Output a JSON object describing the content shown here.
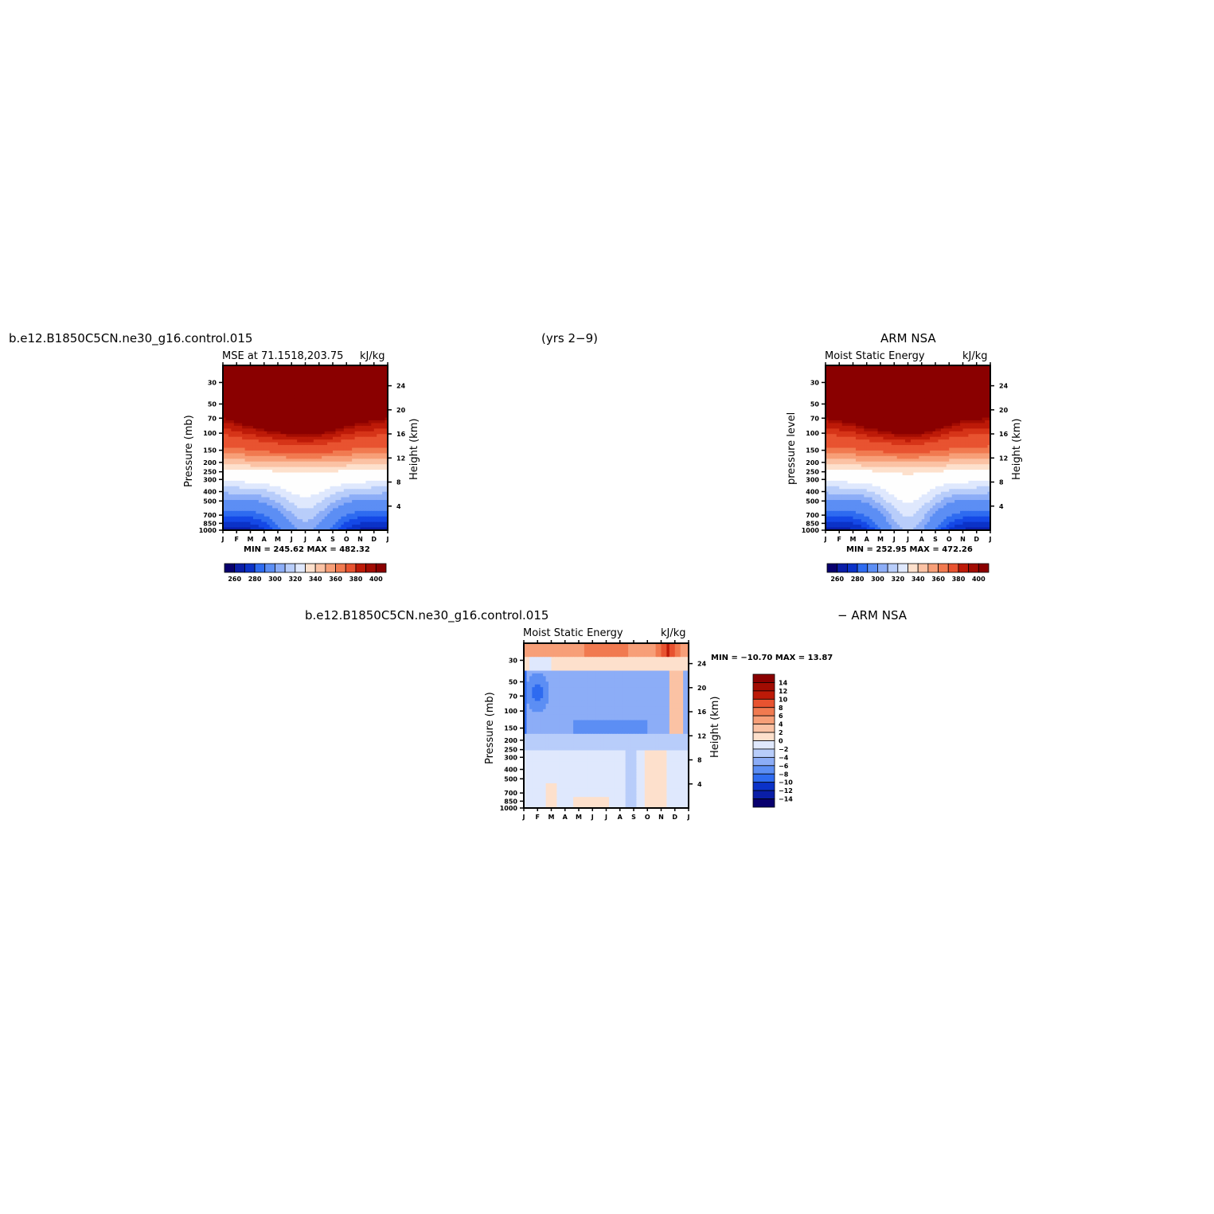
{
  "top_left_case": "b.e12.B1850C5CN.ne30_g16.control.015",
  "period": "(yrs 2−9)",
  "top_right_source": "ARM  NSA",
  "bottom_case": "b.e12.B1850C5CN.ne30_g16.control.015",
  "bottom_source": "− ARM  NSA",
  "colors": {
    "blues": [
      "#08006e",
      "#0a1ea8",
      "#0b32c8",
      "#1448e6",
      "#2e6bf0",
      "#5c8ef4",
      "#8cadf7",
      "#b8cdfa",
      "#dfe8fd"
    ],
    "white": "#fefefe",
    "reds": [
      "#fde0cc",
      "#fbc2a4",
      "#f79f78",
      "#f17a50",
      "#e85330",
      "#d63418",
      "#bd1a08",
      "#a20c02",
      "#8a0000"
    ]
  },
  "chart_data": [
    {
      "type": "heatmap",
      "title": "MSE  at  71.1518,203.75",
      "units": "kJ/kg",
      "ylabel": "Pressure  (mb)",
      "ylabel_right": "Height  (km)",
      "months": [
        "J",
        "F",
        "M",
        "A",
        "M",
        "J",
        "J",
        "A",
        "S",
        "O",
        "N",
        "D",
        "J"
      ],
      "pressure_ticks": [
        "30",
        "50",
        "70",
        "100",
        "150",
        "200",
        "250",
        "300",
        "400",
        "500",
        "700",
        "850",
        "1000"
      ],
      "height_ticks": [
        "24",
        "20",
        "16",
        "12",
        "8",
        "4"
      ],
      "stats": "MIN =  245.62  MAX =  482.32",
      "legend_labels": [
        "260",
        "280",
        "300",
        "320",
        "340",
        "360",
        "380",
        "400"
      ],
      "levels": [
        255,
        260,
        265,
        270,
        275,
        280,
        285,
        290,
        295,
        300,
        310,
        320,
        330,
        340,
        350,
        360,
        370,
        380,
        390,
        400
      ],
      "tropopause_p": [
        70,
        78,
        85,
        92,
        98,
        102,
        105,
        102,
        95,
        85,
        78,
        75,
        70
      ],
      "trough": {
        "center_month": 6,
        "surface_depth": 0.65
      }
    },
    {
      "type": "heatmap",
      "title": "Moist  Static  Energy",
      "units": "kJ/kg",
      "ylabel": "pressure  level",
      "ylabel_right": "Height  (km)",
      "months": [
        "J",
        "F",
        "M",
        "A",
        "M",
        "J",
        "J",
        "A",
        "S",
        "O",
        "N",
        "D",
        "J"
      ],
      "pressure_ticks": [
        "30",
        "50",
        "70",
        "100",
        "150",
        "200",
        "250",
        "300",
        "400",
        "500",
        "700",
        "850",
        "1000"
      ],
      "height_ticks": [
        "24",
        "20",
        "16",
        "12",
        "8",
        "4"
      ],
      "stats": "MIN =  252.95  MAX =  472.26",
      "legend_labels": [
        "260",
        "280",
        "300",
        "320",
        "340",
        "360",
        "380",
        "400"
      ],
      "levels": [
        255,
        260,
        265,
        270,
        275,
        280,
        285,
        290,
        295,
        300,
        310,
        320,
        330,
        340,
        350,
        360,
        370,
        380,
        390,
        400
      ],
      "tropopause_p": [
        70,
        75,
        80,
        88,
        94,
        100,
        104,
        100,
        92,
        82,
        75,
        72,
        70
      ],
      "trough": {
        "center_month": 6,
        "surface_depth": 0.75
      }
    },
    {
      "type": "heatmap",
      "title": "Moist  Static  Energy",
      "units": "kJ/kg",
      "ylabel": "Pressure  (mb)",
      "ylabel_right": "Height  (km)",
      "months": [
        "J",
        "F",
        "M",
        "A",
        "M",
        "J",
        "J",
        "A",
        "S",
        "O",
        "N",
        "D",
        "J"
      ],
      "pressure_ticks": [
        "30",
        "50",
        "70",
        "100",
        "150",
        "200",
        "250",
        "300",
        "400",
        "500",
        "700",
        "850",
        "1000"
      ],
      "height_ticks": [
        "24",
        "20",
        "16",
        "12",
        "8",
        "4"
      ],
      "stats": "MIN = −10.70  MAX =   13.87",
      "legend_labels": [
        "14",
        "12",
        "10",
        "8",
        "6",
        "4",
        "2",
        "0",
        "−2",
        "−4",
        "−6",
        "−8",
        "−10",
        "−12",
        "−14"
      ],
      "levels": [
        -14,
        -12,
        -10,
        -8,
        -6,
        -4,
        -2,
        0,
        2,
        4,
        6,
        8,
        10,
        12,
        14
      ]
    }
  ]
}
